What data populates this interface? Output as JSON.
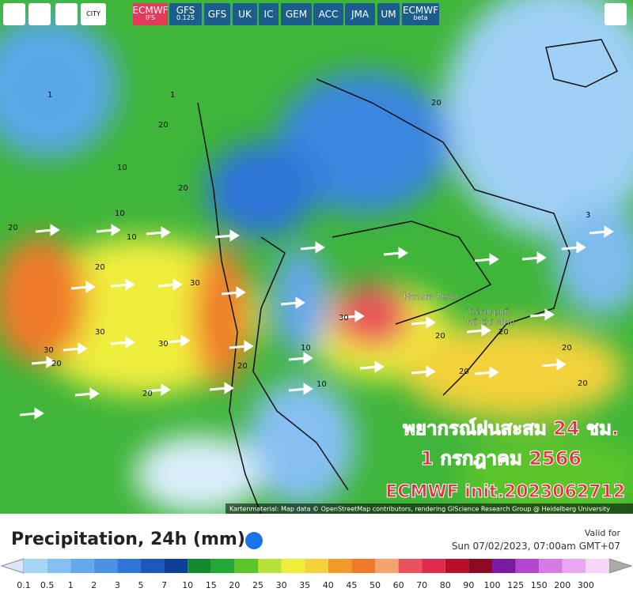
{
  "toolbar": {
    "city_icon": "CITY",
    "models": [
      {
        "label": "ECMWF",
        "sub": "IFS"
      },
      {
        "label": "GFS",
        "sub": "0.125"
      },
      {
        "label": "GFS"
      },
      {
        "label": "UK"
      },
      {
        "label": "IC"
      },
      {
        "label": "GEM"
      },
      {
        "label": "ACC"
      },
      {
        "label": "JMA"
      },
      {
        "label": "UM"
      },
      {
        "label": "ECMWF",
        "sub": "beta"
      }
    ]
  },
  "map": {
    "places": [
      "Phnom Penh",
      "Thành phố",
      "Hồ Chí Minh"
    ],
    "contour_labels": [
      "20",
      "20",
      "20",
      "10",
      "10",
      "20",
      "30",
      "30",
      "20",
      "30",
      "20",
      "20",
      "30",
      "10",
      "10",
      "20",
      "1",
      "20",
      "10",
      "20",
      "3",
      "20",
      "20",
      "20",
      "30",
      "1"
    ],
    "overlay": [
      "พยากรณ์ฝนสะสม 24 ชม.",
      "1 กรกฎาคม 2566",
      "ECMWF init.2023062712"
    ],
    "attribution": "Kartenmaterial: Map data © OpenStreetMap contributors, rendering GIScience Research Group @ Heidelberg University"
  },
  "panel": {
    "title": "Precipitation, 24h (mm)",
    "valid_label": "Valid for",
    "valid_time": "Sun 07/02/2023, 07:00am GMT+07"
  },
  "legend": {
    "labels": [
      "0.1",
      "0.5",
      "1",
      "2",
      "3",
      "5",
      "7",
      "10",
      "15",
      "20",
      "25",
      "30",
      "35",
      "40",
      "45",
      "50",
      "60",
      "70",
      "80",
      "90",
      "100",
      "125",
      "150",
      "200",
      "300"
    ],
    "colors": [
      "#a9d5f6",
      "#86c0f2",
      "#66a8ec",
      "#4a90e4",
      "#2f75d8",
      "#1e58bd",
      "#0d3f9a",
      "#118a2e",
      "#22a834",
      "#5cc52c",
      "#b4e23a",
      "#f0ee3c",
      "#f3d23a",
      "#f29b2b",
      "#ef7a2a",
      "#f4a26e",
      "#e9525c",
      "#dd2a4e",
      "#b8102c",
      "#8c0a22",
      "#7a1aa0",
      "#b446cf",
      "#d47ae2",
      "#e9a8f1",
      "#f4d6f7"
    ]
  }
}
